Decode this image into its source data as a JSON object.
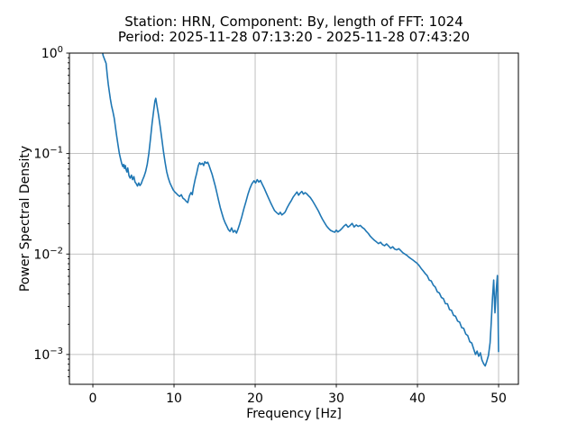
{
  "chart_data": {
    "type": "line",
    "title_line1": "Station: HRN, Component: By, length of FFT: 1024",
    "title_line2": "Period: 2025-11-28 07:13:20 - 2025-11-28 07:43:20",
    "xlabel": "Frequency [Hz]",
    "ylabel": "Power Spectral Density",
    "xscale": "linear",
    "yscale": "log",
    "xlim": [
      -2.89,
      52.44
    ],
    "ylim": [
      0.000505,
      1.0
    ],
    "grid": true,
    "grid_color": "#b0b0b0",
    "line_color": "#1f77b4",
    "background_color": "#ffffff",
    "x_ticks": [
      {
        "value": 0,
        "label": "0"
      },
      {
        "value": 10,
        "label": "10"
      },
      {
        "value": 20,
        "label": "20"
      },
      {
        "value": 30,
        "label": "30"
      },
      {
        "value": 40,
        "label": "40"
      },
      {
        "value": 50,
        "label": "50"
      }
    ],
    "y_ticks": [
      {
        "value": 1,
        "base": "10",
        "exp": "0"
      },
      {
        "value": 0.1,
        "base": "10",
        "exp": "−1"
      },
      {
        "value": 0.01,
        "base": "10",
        "exp": "−2"
      },
      {
        "value": 0.001,
        "base": "10",
        "exp": "−3"
      }
    ],
    "series": [
      {
        "name": "psd",
        "points": [
          [
            1.02,
            1.25
          ],
          [
            1.25,
            0.95
          ],
          [
            1.45,
            0.86
          ],
          [
            1.63,
            0.79
          ],
          [
            1.78,
            0.6
          ],
          [
            1.9,
            0.49
          ],
          [
            2.03,
            0.41
          ],
          [
            2.15,
            0.35
          ],
          [
            2.3,
            0.3
          ],
          [
            2.45,
            0.265
          ],
          [
            2.63,
            0.225
          ],
          [
            2.78,
            0.185
          ],
          [
            2.92,
            0.152
          ],
          [
            3.1,
            0.122
          ],
          [
            3.26,
            0.1
          ],
          [
            3.42,
            0.088
          ],
          [
            3.56,
            0.079
          ],
          [
            3.7,
            0.074
          ],
          [
            3.8,
            0.078
          ],
          [
            3.9,
            0.071
          ],
          [
            4.0,
            0.076
          ],
          [
            4.1,
            0.069
          ],
          [
            4.2,
            0.0655
          ],
          [
            4.3,
            0.072
          ],
          [
            4.45,
            0.06
          ],
          [
            4.6,
            0.057
          ],
          [
            4.75,
            0.061
          ],
          [
            4.9,
            0.055
          ],
          [
            5.05,
            0.059
          ],
          [
            5.2,
            0.052
          ],
          [
            5.35,
            0.05
          ],
          [
            5.5,
            0.0475
          ],
          [
            5.65,
            0.051
          ],
          [
            5.8,
            0.048
          ],
          [
            5.95,
            0.05
          ],
          [
            6.1,
            0.054
          ],
          [
            6.3,
            0.059
          ],
          [
            6.5,
            0.066
          ],
          [
            6.7,
            0.078
          ],
          [
            6.9,
            0.1
          ],
          [
            7.1,
            0.14
          ],
          [
            7.3,
            0.2
          ],
          [
            7.5,
            0.27
          ],
          [
            7.65,
            0.335
          ],
          [
            7.75,
            0.355
          ],
          [
            7.9,
            0.3
          ],
          [
            8.1,
            0.24
          ],
          [
            8.3,
            0.185
          ],
          [
            8.5,
            0.14
          ],
          [
            8.7,
            0.105
          ],
          [
            8.9,
            0.082
          ],
          [
            9.1,
            0.066
          ],
          [
            9.3,
            0.057
          ],
          [
            9.5,
            0.051
          ],
          [
            9.7,
            0.047
          ],
          [
            9.9,
            0.0435
          ],
          [
            10.1,
            0.0415
          ],
          [
            10.3,
            0.04
          ],
          [
            10.5,
            0.0385
          ],
          [
            10.7,
            0.0375
          ],
          [
            10.9,
            0.039
          ],
          [
            11.1,
            0.036
          ],
          [
            11.3,
            0.035
          ],
          [
            11.5,
            0.0335
          ],
          [
            11.7,
            0.0325
          ],
          [
            11.9,
            0.038
          ],
          [
            12.1,
            0.041
          ],
          [
            12.25,
            0.039
          ],
          [
            12.4,
            0.046
          ],
          [
            12.6,
            0.055
          ],
          [
            12.8,
            0.064
          ],
          [
            13.0,
            0.076
          ],
          [
            13.15,
            0.081
          ],
          [
            13.3,
            0.078
          ],
          [
            13.5,
            0.08
          ],
          [
            13.65,
            0.076
          ],
          [
            13.8,
            0.083
          ],
          [
            14.0,
            0.08
          ],
          [
            14.15,
            0.082
          ],
          [
            14.3,
            0.077
          ],
          [
            14.5,
            0.069
          ],
          [
            14.7,
            0.062
          ],
          [
            14.9,
            0.054
          ],
          [
            15.1,
            0.047
          ],
          [
            15.3,
            0.04
          ],
          [
            15.5,
            0.034
          ],
          [
            15.7,
            0.029
          ],
          [
            15.9,
            0.0255
          ],
          [
            16.1,
            0.0225
          ],
          [
            16.3,
            0.0205
          ],
          [
            16.5,
            0.019
          ],
          [
            16.7,
            0.0175
          ],
          [
            16.9,
            0.0168
          ],
          [
            17.1,
            0.0182
          ],
          [
            17.3,
            0.0165
          ],
          [
            17.5,
            0.0172
          ],
          [
            17.7,
            0.0162
          ],
          [
            17.9,
            0.0178
          ],
          [
            18.1,
            0.02
          ],
          [
            18.35,
            0.0235
          ],
          [
            18.6,
            0.028
          ],
          [
            18.85,
            0.033
          ],
          [
            19.1,
            0.039
          ],
          [
            19.35,
            0.045
          ],
          [
            19.6,
            0.05
          ],
          [
            19.85,
            0.0535
          ],
          [
            20.05,
            0.051
          ],
          [
            20.25,
            0.055
          ],
          [
            20.45,
            0.052
          ],
          [
            20.65,
            0.054
          ],
          [
            20.9,
            0.049
          ],
          [
            21.15,
            0.0445
          ],
          [
            21.4,
            0.04
          ],
          [
            21.65,
            0.036
          ],
          [
            21.9,
            0.0325
          ],
          [
            22.15,
            0.0295
          ],
          [
            22.4,
            0.027
          ],
          [
            22.65,
            0.0258
          ],
          [
            22.9,
            0.0248
          ],
          [
            23.1,
            0.026
          ],
          [
            23.3,
            0.0245
          ],
          [
            23.5,
            0.0252
          ],
          [
            23.7,
            0.0262
          ],
          [
            23.95,
            0.029
          ],
          [
            24.2,
            0.0315
          ],
          [
            24.45,
            0.034
          ],
          [
            24.7,
            0.037
          ],
          [
            24.95,
            0.0395
          ],
          [
            25.15,
            0.0415
          ],
          [
            25.35,
            0.0385
          ],
          [
            25.55,
            0.0405
          ],
          [
            25.75,
            0.042
          ],
          [
            25.95,
            0.0395
          ],
          [
            26.15,
            0.0408
          ],
          [
            26.35,
            0.0398
          ],
          [
            26.55,
            0.0382
          ],
          [
            26.8,
            0.0365
          ],
          [
            27.05,
            0.034
          ],
          [
            27.3,
            0.0315
          ],
          [
            27.55,
            0.029
          ],
          [
            27.8,
            0.0268
          ],
          [
            28.05,
            0.0242
          ],
          [
            28.3,
            0.0222
          ],
          [
            28.55,
            0.0205
          ],
          [
            28.8,
            0.019
          ],
          [
            29.05,
            0.018
          ],
          [
            29.3,
            0.0172
          ],
          [
            29.55,
            0.0168
          ],
          [
            29.8,
            0.0165
          ],
          [
            30.0,
            0.0173
          ],
          [
            30.2,
            0.0166
          ],
          [
            30.45,
            0.0172
          ],
          [
            30.7,
            0.018
          ],
          [
            30.95,
            0.019
          ],
          [
            31.2,
            0.0197
          ],
          [
            31.45,
            0.0185
          ],
          [
            31.7,
            0.0192
          ],
          [
            31.95,
            0.0202
          ],
          [
            32.2,
            0.0186
          ],
          [
            32.45,
            0.0195
          ],
          [
            32.7,
            0.0188
          ],
          [
            32.95,
            0.0193
          ],
          [
            33.2,
            0.0184
          ],
          [
            33.45,
            0.0178
          ],
          [
            33.7,
            0.0168
          ],
          [
            33.95,
            0.016
          ],
          [
            34.2,
            0.015
          ],
          [
            34.45,
            0.0143
          ],
          [
            34.7,
            0.0137
          ],
          [
            34.95,
            0.0132
          ],
          [
            35.2,
            0.0127
          ],
          [
            35.45,
            0.0131
          ],
          [
            35.7,
            0.0124
          ],
          [
            35.95,
            0.0121
          ],
          [
            36.2,
            0.0126
          ],
          [
            36.45,
            0.012
          ],
          [
            36.7,
            0.0114
          ],
          [
            36.95,
            0.0118
          ],
          [
            37.2,
            0.0112
          ],
          [
            37.45,
            0.011
          ],
          [
            37.7,
            0.0113
          ],
          [
            37.95,
            0.0108
          ],
          [
            38.2,
            0.0103
          ],
          [
            38.45,
            0.01
          ],
          [
            38.7,
            0.0097
          ],
          [
            38.95,
            0.0093
          ],
          [
            39.2,
            0.009
          ],
          [
            39.45,
            0.0087
          ],
          [
            39.7,
            0.0084
          ],
          [
            39.95,
            0.0081
          ],
          [
            40.2,
            0.0077
          ],
          [
            40.45,
            0.0072
          ],
          [
            40.7,
            0.0068
          ],
          [
            40.95,
            0.0064
          ],
          [
            41.2,
            0.0061
          ],
          [
            41.45,
            0.0055
          ],
          [
            41.7,
            0.0054
          ],
          [
            41.95,
            0.0049
          ],
          [
            42.2,
            0.0047
          ],
          [
            42.45,
            0.0042
          ],
          [
            42.7,
            0.0041
          ],
          [
            42.95,
            0.0037
          ],
          [
            43.2,
            0.0036
          ],
          [
            43.45,
            0.0032
          ],
          [
            43.7,
            0.0032
          ],
          [
            43.95,
            0.0028
          ],
          [
            44.2,
            0.00275
          ],
          [
            44.45,
            0.00245
          ],
          [
            44.7,
            0.0024
          ],
          [
            44.95,
            0.00215
          ],
          [
            45.2,
            0.0021
          ],
          [
            45.45,
            0.00185
          ],
          [
            45.7,
            0.00182
          ],
          [
            45.95,
            0.0016
          ],
          [
            46.2,
            0.00154
          ],
          [
            46.45,
            0.00134
          ],
          [
            46.7,
            0.0013
          ],
          [
            46.95,
            0.00112
          ],
          [
            47.15,
            0.001
          ],
          [
            47.35,
            0.00108
          ],
          [
            47.55,
            0.00096
          ],
          [
            47.75,
            0.00104
          ],
          [
            47.95,
            0.00088
          ],
          [
            48.15,
            0.00081
          ],
          [
            48.35,
            0.00077
          ],
          [
            48.55,
            0.00086
          ],
          [
            48.75,
            0.00098
          ],
          [
            48.95,
            0.00131
          ],
          [
            49.1,
            0.0021
          ],
          [
            49.25,
            0.0037
          ],
          [
            49.4,
            0.0055
          ],
          [
            49.55,
            0.0026
          ],
          [
            49.7,
            0.0042
          ],
          [
            49.85,
            0.0061
          ],
          [
            49.92,
            0.0031
          ],
          [
            50.0,
            0.00107
          ]
        ]
      }
    ]
  }
}
